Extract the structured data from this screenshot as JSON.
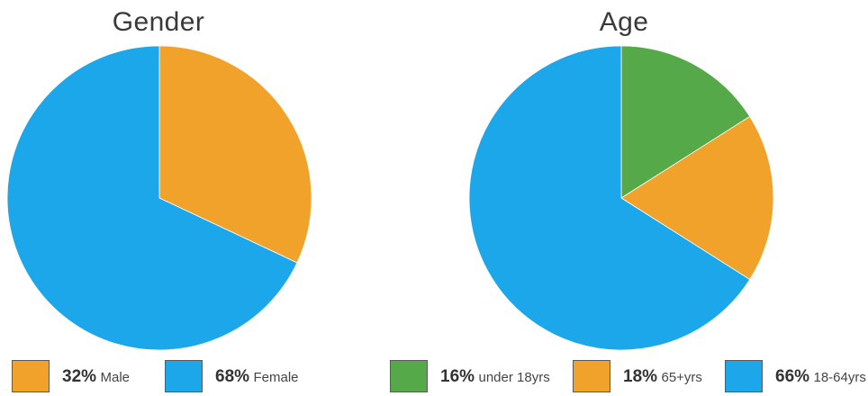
{
  "chart_data": [
    {
      "type": "pie",
      "title": "Gender",
      "slices": [
        {
          "percent": "32%",
          "label": "Male",
          "value": 32,
          "color": "#F0A22A"
        },
        {
          "percent": "68%",
          "label": "Female",
          "value": 68,
          "color": "#1CA7EA"
        }
      ]
    },
    {
      "type": "pie",
      "title": "Age",
      "slices": [
        {
          "percent": "16%",
          "label": "under 18yrs",
          "value": 16,
          "color": "#55A948"
        },
        {
          "percent": "18%",
          "label": "65+yrs",
          "value": 18,
          "color": "#F0A22A"
        },
        {
          "percent": "66%",
          "label": "18-64yrs",
          "value": 66,
          "color": "#1CA7EA"
        }
      ]
    }
  ]
}
